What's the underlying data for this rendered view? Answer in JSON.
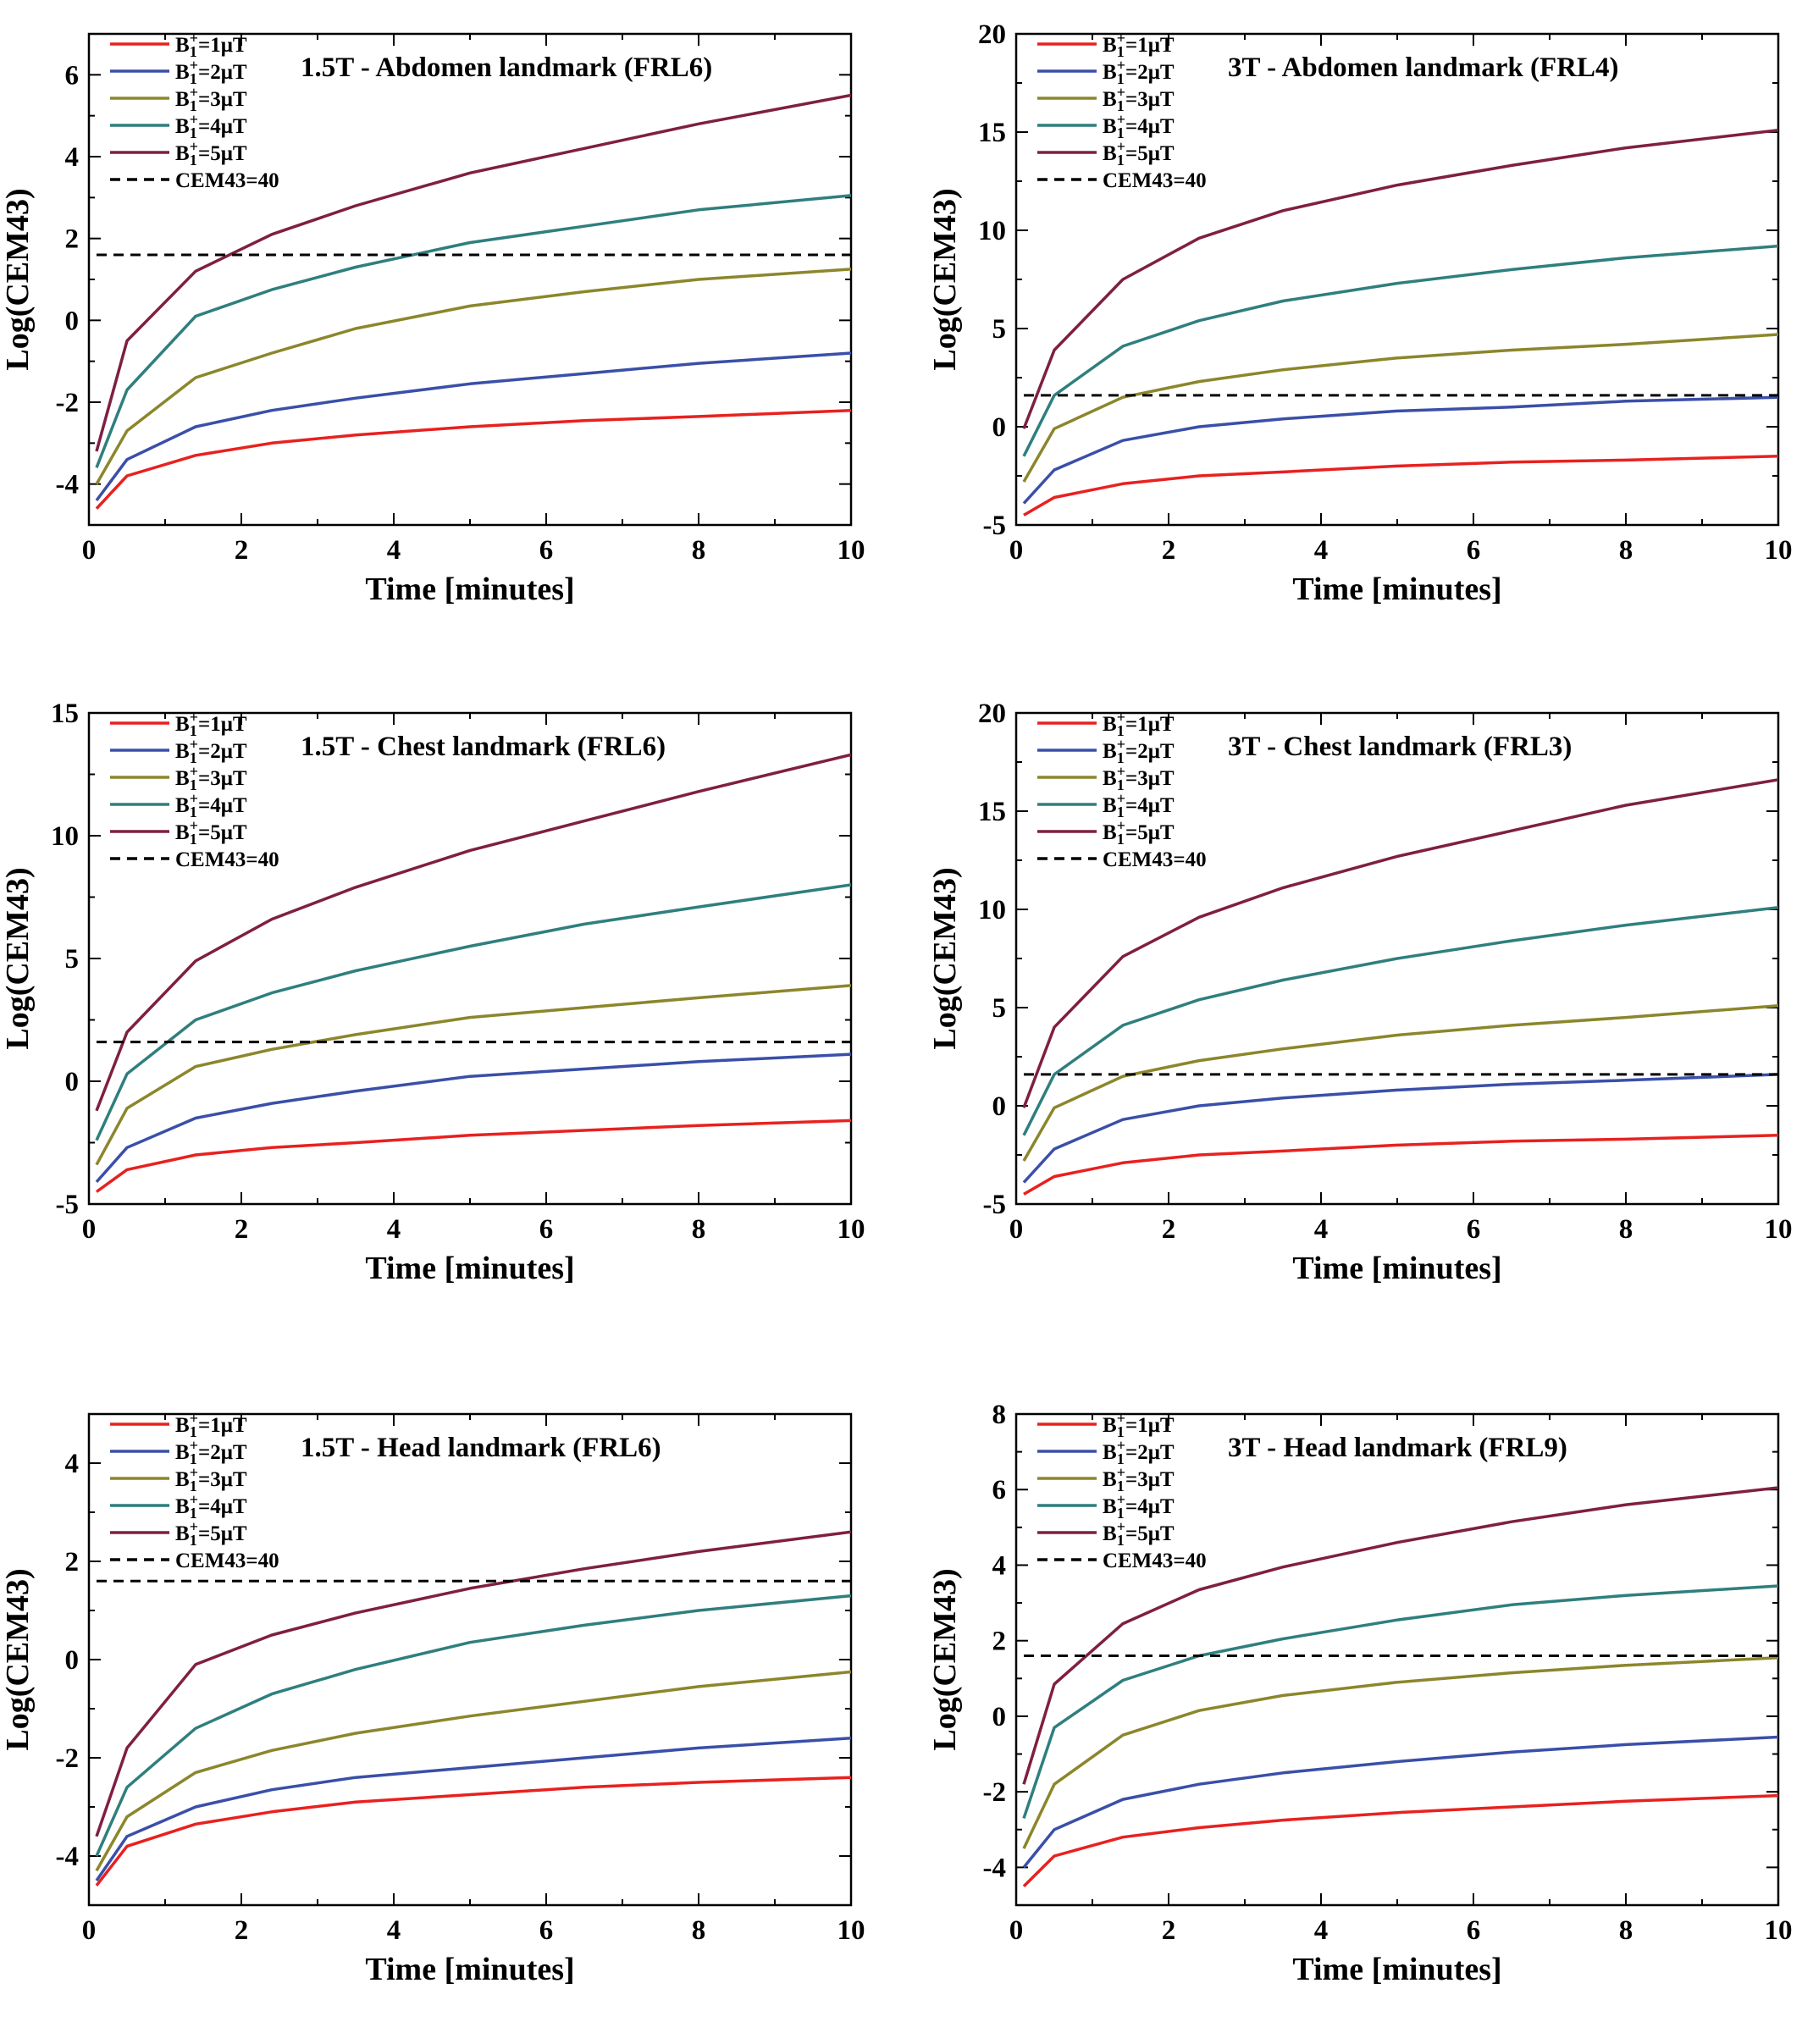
{
  "figure": {
    "xlabel": "Time [minutes]",
    "ylabel": "Log(CEM43)"
  },
  "legend": [
    {
      "base": "B",
      "sub": "1",
      "sup": "+",
      "rest": "=1μT",
      "color": "#e8211f"
    },
    {
      "base": "B",
      "sub": "1",
      "sup": "+",
      "rest": "=2μT",
      "color": "#3a4fa8"
    },
    {
      "base": "B",
      "sub": "1",
      "sup": "+",
      "rest": "=3μT",
      "color": "#8c862c"
    },
    {
      "base": "B",
      "sub": "1",
      "sup": "+",
      "rest": "=4μT",
      "color": "#2f7f7e"
    },
    {
      "base": "B",
      "sub": "1",
      "sup": "+",
      "rest": "=5μT",
      "color": "#7f1f42"
    },
    {
      "text": "CEM43=40",
      "color": "#000000",
      "dashed": true
    }
  ],
  "chart_data": [
    {
      "type": "line",
      "title": "1.5T - Abdomen landmark (FRL6)",
      "xlabel": "Time [minutes]",
      "ylabel": "Log(CEM43)",
      "xlim": [
        0,
        10
      ],
      "ylim": [
        -5,
        7
      ],
      "xticks": [
        0,
        2,
        4,
        6,
        8,
        10
      ],
      "yticks": [
        -4,
        -2,
        0,
        2,
        4,
        6
      ],
      "x": [
        0.1,
        0.5,
        1.4,
        2.4,
        3.5,
        5,
        6.5,
        8,
        10
      ],
      "series": [
        {
          "name": "B1+=1μT",
          "values": [
            -4.6,
            -3.8,
            -3.3,
            -3.0,
            -2.8,
            -2.6,
            -2.45,
            -2.35,
            -2.2
          ]
        },
        {
          "name": "B1+=2μT",
          "values": [
            -4.4,
            -3.4,
            -2.6,
            -2.2,
            -1.9,
            -1.55,
            -1.3,
            -1.05,
            -0.8
          ]
        },
        {
          "name": "B1+=3μT",
          "values": [
            -4.0,
            -2.7,
            -1.4,
            -0.8,
            -0.2,
            0.35,
            0.7,
            1.0,
            1.25
          ]
        },
        {
          "name": "B1+=4μT",
          "values": [
            -3.6,
            -1.7,
            0.1,
            0.75,
            1.3,
            1.9,
            2.3,
            2.7,
            3.05
          ]
        },
        {
          "name": "B1+=5μT",
          "values": [
            -3.2,
            -0.5,
            1.2,
            2.1,
            2.8,
            3.6,
            4.2,
            4.8,
            5.5
          ]
        },
        {
          "name": "CEM43=40",
          "values": [
            1.6,
            1.6,
            1.6,
            1.6,
            1.6,
            1.6,
            1.6,
            1.6,
            1.6
          ],
          "dashed": true
        }
      ]
    },
    {
      "type": "line",
      "title": "3T - Abdomen landmark (FRL4)",
      "xlabel": "Time [minutes]",
      "ylabel": "Log(CEM43)",
      "xlim": [
        0,
        10
      ],
      "ylim": [
        -5,
        20
      ],
      "xticks": [
        0,
        2,
        4,
        6,
        8,
        10
      ],
      "yticks": [
        -5,
        0,
        5,
        10,
        15,
        20
      ],
      "x": [
        0.1,
        0.5,
        1.4,
        2.4,
        3.5,
        5,
        6.5,
        8,
        10
      ],
      "series": [
        {
          "name": "B1+=1μT",
          "values": [
            -4.5,
            -3.6,
            -2.9,
            -2.5,
            -2.3,
            -2.0,
            -1.8,
            -1.7,
            -1.5
          ]
        },
        {
          "name": "B1+=2μT",
          "values": [
            -3.9,
            -2.2,
            -0.7,
            0.0,
            0.4,
            0.8,
            1.0,
            1.3,
            1.5
          ]
        },
        {
          "name": "B1+=3μT",
          "values": [
            -2.8,
            -0.1,
            1.5,
            2.3,
            2.9,
            3.5,
            3.9,
            4.2,
            4.7
          ]
        },
        {
          "name": "B1+=4μT",
          "values": [
            -1.5,
            1.6,
            4.1,
            5.4,
            6.4,
            7.3,
            8.0,
            8.6,
            9.2
          ]
        },
        {
          "name": "B1+=5μT",
          "values": [
            -0.1,
            3.9,
            7.5,
            9.6,
            11.0,
            12.3,
            13.3,
            14.2,
            15.1
          ]
        },
        {
          "name": "CEM43=40",
          "values": [
            1.6,
            1.6,
            1.6,
            1.6,
            1.6,
            1.6,
            1.6,
            1.6,
            1.6
          ],
          "dashed": true
        }
      ]
    },
    {
      "type": "line",
      "title": "1.5T - Chest landmark (FRL6)",
      "xlabel": "Time [minutes]",
      "ylabel": "Log(CEM43)",
      "xlim": [
        0,
        10
      ],
      "ylim": [
        -5,
        15
      ],
      "xticks": [
        0,
        2,
        4,
        6,
        8,
        10
      ],
      "yticks": [
        -5,
        0,
        5,
        10,
        15
      ],
      "x": [
        0.1,
        0.5,
        1.4,
        2.4,
        3.5,
        5,
        6.5,
        8,
        10
      ],
      "series": [
        {
          "name": "B1+=1μT",
          "values": [
            -4.5,
            -3.6,
            -3.0,
            -2.7,
            -2.5,
            -2.2,
            -2.0,
            -1.8,
            -1.6
          ]
        },
        {
          "name": "B1+=2μT",
          "values": [
            -4.1,
            -2.7,
            -1.5,
            -0.9,
            -0.4,
            0.2,
            0.5,
            0.8,
            1.1
          ]
        },
        {
          "name": "B1+=3μT",
          "values": [
            -3.4,
            -1.1,
            0.6,
            1.3,
            1.9,
            2.6,
            3.0,
            3.4,
            3.9
          ]
        },
        {
          "name": "B1+=4μT",
          "values": [
            -2.4,
            0.3,
            2.5,
            3.6,
            4.5,
            5.5,
            6.4,
            7.1,
            8.0
          ]
        },
        {
          "name": "B1+=5μT",
          "values": [
            -1.2,
            2.0,
            4.9,
            6.6,
            7.9,
            9.4,
            10.6,
            11.8,
            13.3
          ]
        },
        {
          "name": "CEM43=40",
          "values": [
            1.6,
            1.6,
            1.6,
            1.6,
            1.6,
            1.6,
            1.6,
            1.6,
            1.6
          ],
          "dashed": true
        }
      ]
    },
    {
      "type": "line",
      "title": "3T - Chest landmark (FRL3)",
      "xlabel": "Time [minutes]",
      "ylabel": "Log(CEM43)",
      "xlim": [
        0,
        10
      ],
      "ylim": [
        -5,
        20
      ],
      "xticks": [
        0,
        2,
        4,
        6,
        8,
        10
      ],
      "yticks": [
        -5,
        0,
        5,
        10,
        15,
        20
      ],
      "x": [
        0.1,
        0.5,
        1.4,
        2.4,
        3.5,
        5,
        6.5,
        8,
        10
      ],
      "series": [
        {
          "name": "B1+=1μT",
          "values": [
            -4.5,
            -3.6,
            -2.9,
            -2.5,
            -2.3,
            -2.0,
            -1.8,
            -1.7,
            -1.5
          ]
        },
        {
          "name": "B1+=2μT",
          "values": [
            -3.9,
            -2.2,
            -0.7,
            0.0,
            0.4,
            0.8,
            1.1,
            1.3,
            1.6
          ]
        },
        {
          "name": "B1+=3μT",
          "values": [
            -2.8,
            -0.1,
            1.5,
            2.3,
            2.9,
            3.6,
            4.1,
            4.5,
            5.1
          ]
        },
        {
          "name": "B1+=4μT",
          "values": [
            -1.5,
            1.6,
            4.1,
            5.4,
            6.4,
            7.5,
            8.4,
            9.2,
            10.1
          ]
        },
        {
          "name": "B1+=5μT",
          "values": [
            -0.1,
            4.0,
            7.6,
            9.6,
            11.1,
            12.7,
            14.0,
            15.3,
            16.6
          ]
        },
        {
          "name": "CEM43=40",
          "values": [
            1.6,
            1.6,
            1.6,
            1.6,
            1.6,
            1.6,
            1.6,
            1.6,
            1.6
          ],
          "dashed": true
        }
      ]
    },
    {
      "type": "line",
      "title": "1.5T - Head landmark (FRL6)",
      "xlabel": "Time [minutes]",
      "ylabel": "Log(CEM43)",
      "xlim": [
        0,
        10
      ],
      "ylim": [
        -5,
        5
      ],
      "xticks": [
        0,
        2,
        4,
        6,
        8,
        10
      ],
      "yticks": [
        -4,
        -2,
        0,
        2,
        4
      ],
      "x": [
        0.1,
        0.5,
        1.4,
        2.4,
        3.5,
        5,
        6.5,
        8,
        10
      ],
      "series": [
        {
          "name": "B1+=1μT",
          "values": [
            -4.6,
            -3.8,
            -3.35,
            -3.1,
            -2.9,
            -2.75,
            -2.6,
            -2.5,
            -2.4
          ]
        },
        {
          "name": "B1+=2μT",
          "values": [
            -4.5,
            -3.6,
            -3.0,
            -2.65,
            -2.4,
            -2.2,
            -2.0,
            -1.8,
            -1.6
          ]
        },
        {
          "name": "B1+=3μT",
          "values": [
            -4.3,
            -3.2,
            -2.3,
            -1.85,
            -1.5,
            -1.15,
            -0.85,
            -0.55,
            -0.25
          ]
        },
        {
          "name": "B1+=4μT",
          "values": [
            -4.0,
            -2.6,
            -1.4,
            -0.7,
            -0.2,
            0.35,
            0.7,
            1.0,
            1.3
          ]
        },
        {
          "name": "B1+=5μT",
          "values": [
            -3.6,
            -1.8,
            -0.1,
            0.5,
            0.95,
            1.45,
            1.85,
            2.2,
            2.6
          ]
        },
        {
          "name": "CEM43=40",
          "values": [
            1.6,
            1.6,
            1.6,
            1.6,
            1.6,
            1.6,
            1.6,
            1.6,
            1.6
          ],
          "dashed": true
        }
      ]
    },
    {
      "type": "line",
      "title": "3T - Head landmark (FRL9)",
      "xlabel": "Time [minutes]",
      "ylabel": "Log(CEM43)",
      "xlim": [
        0,
        10
      ],
      "ylim": [
        -5,
        8
      ],
      "xticks": [
        0,
        2,
        4,
        6,
        8,
        10
      ],
      "yticks": [
        -4,
        -2,
        0,
        2,
        4,
        6,
        8
      ],
      "x": [
        0.1,
        0.5,
        1.4,
        2.4,
        3.5,
        5,
        6.5,
        8,
        10
      ],
      "series": [
        {
          "name": "B1+=1μT",
          "values": [
            -4.5,
            -3.7,
            -3.2,
            -2.95,
            -2.75,
            -2.55,
            -2.4,
            -2.25,
            -2.1
          ]
        },
        {
          "name": "B1+=2μT",
          "values": [
            -4.0,
            -3.0,
            -2.2,
            -1.8,
            -1.5,
            -1.2,
            -0.95,
            -0.75,
            -0.55
          ]
        },
        {
          "name": "B1+=3μT",
          "values": [
            -3.5,
            -1.8,
            -0.5,
            0.15,
            0.55,
            0.9,
            1.15,
            1.35,
            1.55
          ]
        },
        {
          "name": "B1+=4μT",
          "values": [
            -2.7,
            -0.3,
            0.95,
            1.6,
            2.05,
            2.55,
            2.95,
            3.2,
            3.45
          ]
        },
        {
          "name": "B1+=5μT",
          "values": [
            -1.8,
            0.85,
            2.45,
            3.35,
            3.95,
            4.6,
            5.15,
            5.6,
            6.05
          ]
        },
        {
          "name": "CEM43=40",
          "values": [
            1.6,
            1.6,
            1.6,
            1.6,
            1.6,
            1.6,
            1.6,
            1.6,
            1.6
          ],
          "dashed": true
        }
      ]
    }
  ]
}
